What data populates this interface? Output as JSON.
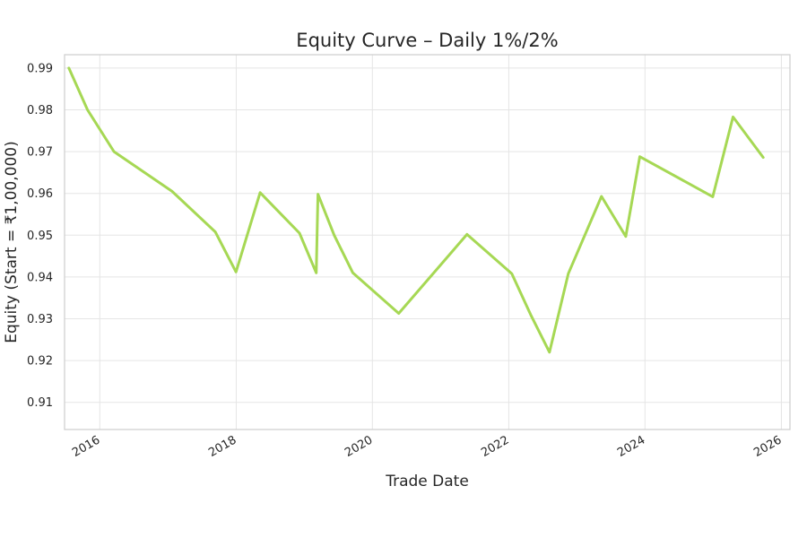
{
  "chart_data": {
    "type": "line",
    "title": "Equity Curve – Daily 1%/2%",
    "xlabel": "Trade Date",
    "ylabel": "Equity (Start = ₹1,00,000)",
    "x_tick_labels": [
      "2016",
      "2018",
      "2020",
      "2022",
      "2024",
      "2026"
    ],
    "x_ticks": [
      "2016-01-01",
      "2018-01-01",
      "2020-01-01",
      "2022-01-01",
      "2024-01-01",
      "2026-01-01"
    ],
    "y_tick_labels": [
      "0.91",
      "0.92",
      "0.93",
      "0.94",
      "0.95",
      "0.96",
      "0.97",
      "0.98",
      "0.99"
    ],
    "y_ticks": [
      0.91,
      0.92,
      0.93,
      0.94,
      0.95,
      0.96,
      0.97,
      0.98,
      0.99
    ],
    "xlim": [
      "2015-06-26",
      "2026-02-16"
    ],
    "ylim": [
      0.9035,
      0.9932
    ],
    "grid": true,
    "line_color": "#a6d854",
    "series": [
      {
        "x": [
          "2015-07-19",
          "2015-10-27",
          "2016-03-17",
          "2017-01-22",
          "2017-09-11",
          "2017-12-31",
          "2018-05-09",
          "2018-12-06",
          "2019-03-06",
          "2019-03-15",
          "2019-06-10",
          "2019-09-18",
          "2020-05-21",
          "2021-05-22",
          "2022-01-17",
          "2022-04-28",
          "2022-08-07",
          "2022-11-16",
          "2023-05-13",
          "2023-09-20",
          "2023-12-04",
          "2024-12-29",
          "2025-04-17",
          "2025-09-26"
        ],
        "y": [
          0.99,
          0.98,
          0.97,
          0.9605,
          0.9508,
          0.9412,
          0.9602,
          0.9505,
          0.941,
          0.9598,
          0.95,
          0.941,
          0.9313,
          0.9502,
          0.9408,
          0.931,
          0.922,
          0.9408,
          0.9593,
          0.9497,
          0.9688,
          0.9592,
          0.9783,
          0.9686
        ]
      }
    ]
  }
}
